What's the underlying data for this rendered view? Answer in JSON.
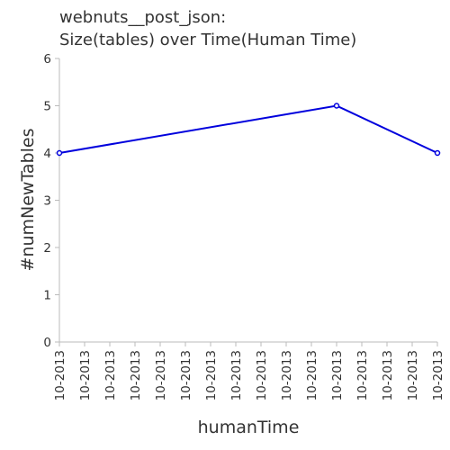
{
  "chart_data": {
    "type": "line",
    "title_lines": [
      "webnuts__post_json:",
      "Size(tables) over Time(Human Time)"
    ],
    "xlabel": "humanTime",
    "ylabel": "#numNewTables",
    "x_tick_labels": [
      "10-2013",
      "10-2013",
      "10-2013",
      "10-2013",
      "10-2013",
      "10-2013",
      "10-2013",
      "10-2013",
      "10-2013",
      "10-2013",
      "10-2013",
      "10-2013",
      "10-2013",
      "10-2013",
      "10-2013",
      "10-2013"
    ],
    "x_tick_positions": [
      0,
      1,
      2,
      3,
      4,
      5,
      6,
      7,
      8,
      9,
      10,
      11,
      12,
      13,
      14,
      15
    ],
    "ylim": [
      0,
      6
    ],
    "y_ticks": [
      0,
      1,
      2,
      3,
      4,
      5,
      6
    ],
    "series": [
      {
        "color": "#0000dd",
        "points": [
          {
            "x": 0,
            "y": 4
          },
          {
            "x": 11,
            "y": 5
          },
          {
            "x": 15,
            "y": 4
          }
        ]
      }
    ],
    "grid": false,
    "legend": "none"
  }
}
